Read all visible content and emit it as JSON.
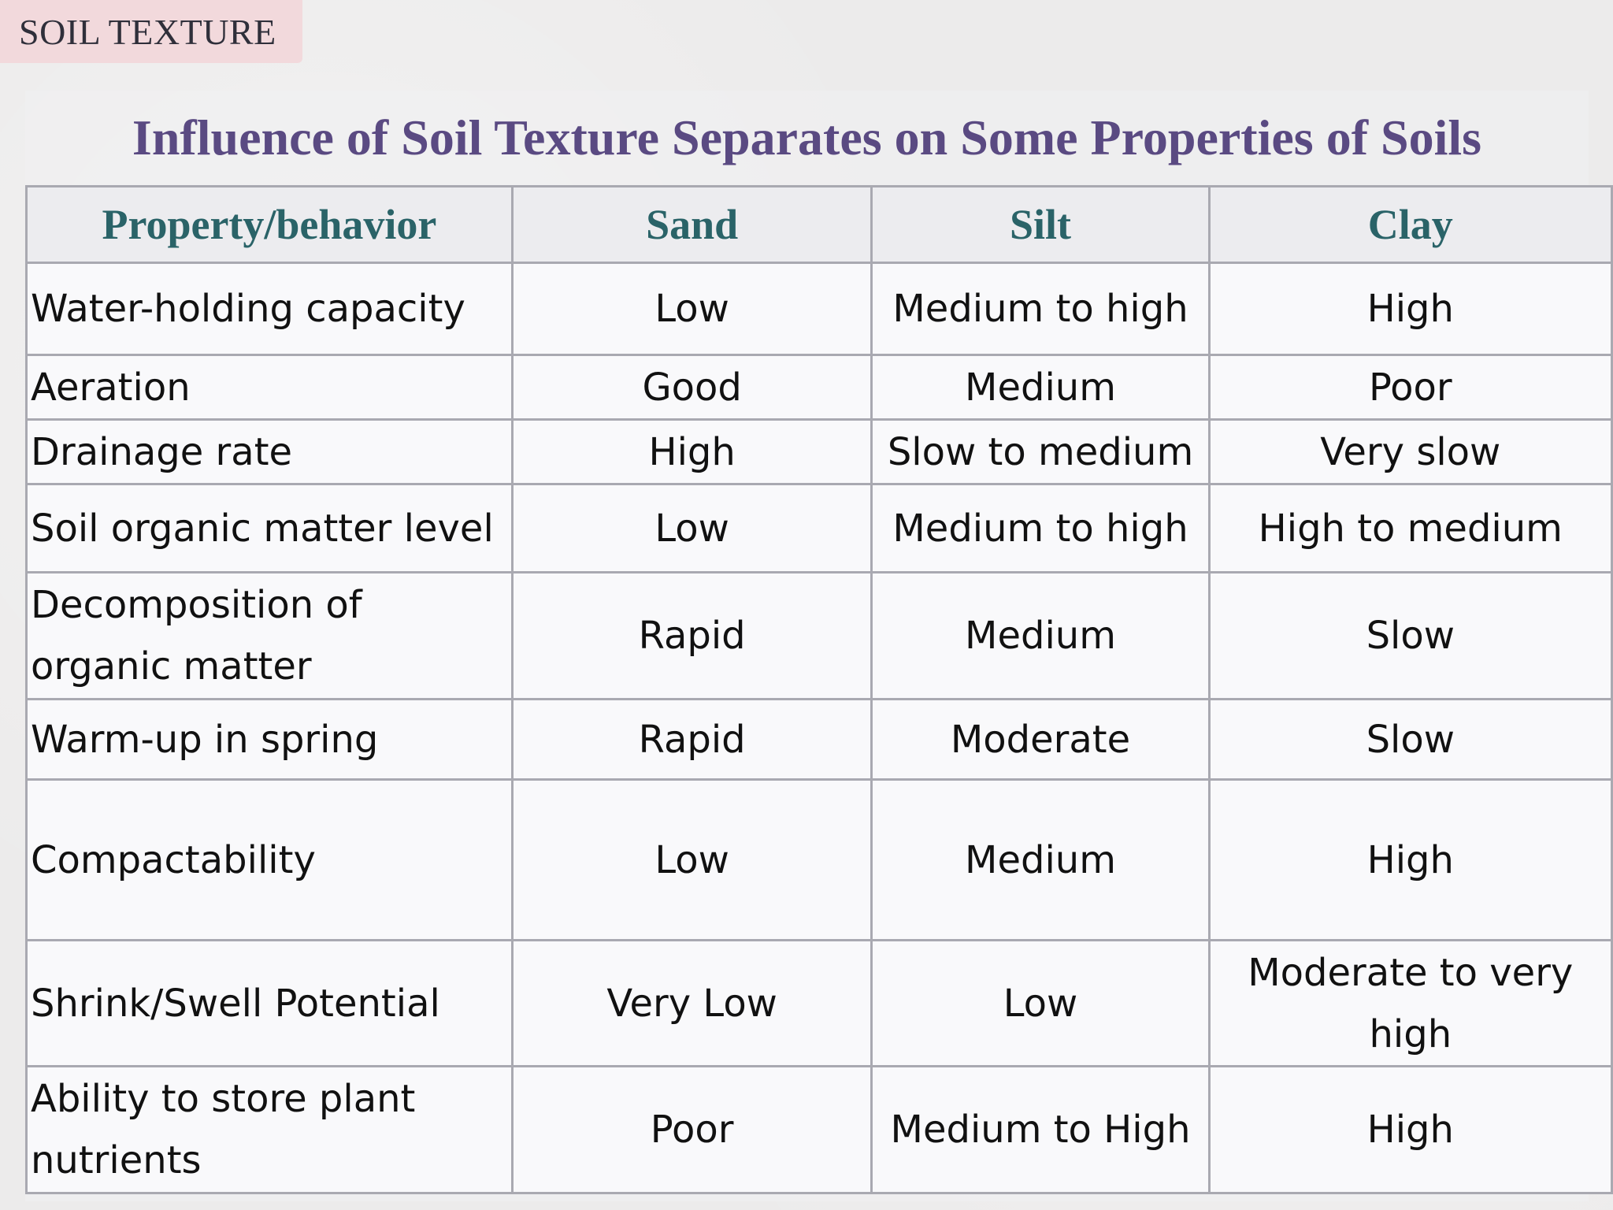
{
  "section_tag": "SOIL TEXTURE",
  "title": "Influence of Soil Texture Separates on Some Properties of Soils",
  "table": {
    "headers": [
      "Property/behavior",
      "Sand",
      "Silt",
      "Clay"
    ],
    "rows": [
      {
        "property": "Water-holding capacity",
        "sand": "Low",
        "silt": "Medium to high",
        "clay": "High"
      },
      {
        "property": "Aeration",
        "sand": "Good",
        "silt": "Medium",
        "clay": "Poor"
      },
      {
        "property": "Drainage rate",
        "sand": "High",
        "silt": "Slow to medium",
        "clay": "Very slow"
      },
      {
        "property": "Soil organic matter level",
        "sand": "Low",
        "silt": "Medium to high",
        "clay": "High to medium"
      },
      {
        "property": "Decomposition of organic matter",
        "sand": "Rapid",
        "silt": "Medium",
        "clay": "Slow"
      },
      {
        "property": "Warm-up in spring",
        "sand": "Rapid",
        "silt": "Moderate",
        "clay": "Slow"
      },
      {
        "property": "Compactability",
        "sand": "Low",
        "silt": "Medium",
        "clay": "High"
      },
      {
        "property": "Shrink/Swell Potential",
        "sand": "Very Low",
        "silt": "Low",
        "clay": "Moderate to very high"
      },
      {
        "property": "Ability to store plant nutrients",
        "sand": "Poor",
        "silt": "Medium to High",
        "clay": "High"
      }
    ]
  }
}
